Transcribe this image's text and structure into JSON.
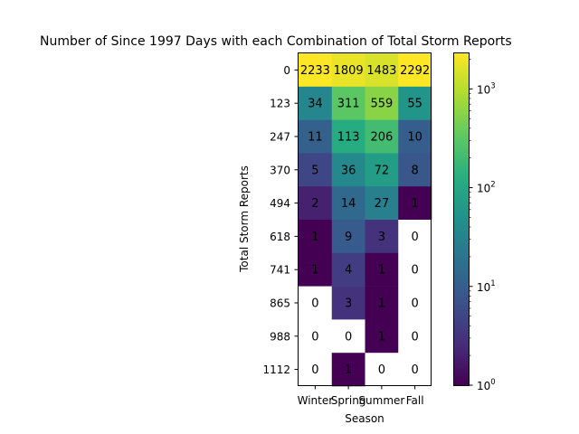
{
  "chart_data": {
    "type": "heatmap",
    "title": "Number of Since 1997 Days with each Combination of Total Storm Reports",
    "xlabel": "Season",
    "ylabel": "Total Storm Reports",
    "x_categories": [
      "Winter",
      "Spring",
      "Summer",
      "Fall"
    ],
    "y_categories": [
      "0",
      "123",
      "247",
      "370",
      "494",
      "618",
      "741",
      "865",
      "988",
      "1112"
    ],
    "values": [
      [
        2233,
        1809,
        1483,
        2292
      ],
      [
        34,
        311,
        559,
        55
      ],
      [
        11,
        113,
        206,
        10
      ],
      [
        5,
        36,
        72,
        8
      ],
      [
        2,
        14,
        27,
        1
      ],
      [
        1,
        9,
        3,
        0
      ],
      [
        1,
        4,
        1,
        0
      ],
      [
        0,
        3,
        1,
        0
      ],
      [
        0,
        0,
        1,
        0
      ],
      [
        0,
        1,
        0,
        0
      ]
    ],
    "color_scale": "log",
    "colormap": "viridis",
    "vmin": 1,
    "vmax": 2292,
    "colorbar_ticks": [
      {
        "value": 1,
        "base": "10",
        "exp": "0"
      },
      {
        "value": 10,
        "base": "10",
        "exp": "1"
      },
      {
        "value": 100,
        "base": "10",
        "exp": "2"
      },
      {
        "value": 1000,
        "base": "10",
        "exp": "3"
      }
    ],
    "zero_cell_color": "#ffffff"
  }
}
